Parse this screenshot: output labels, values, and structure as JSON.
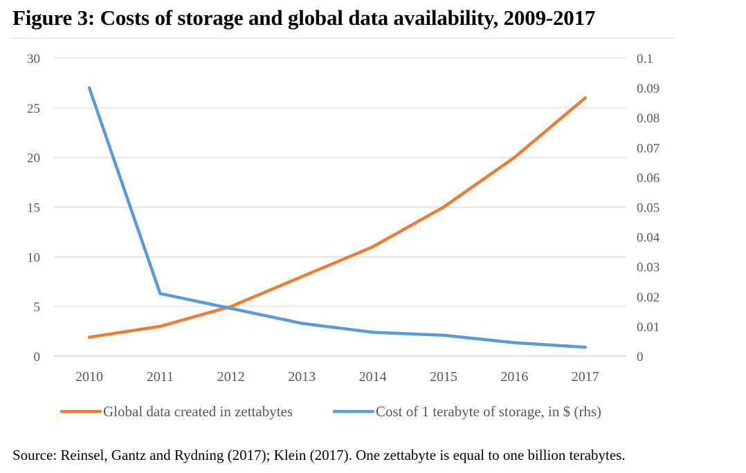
{
  "title": "Figure 3: Costs of storage and global data availability, 2009-2017",
  "source": "Source: Reinsel, Gantz and Rydning (2017); Klein (2017). One zettabyte is equal to one billion terabytes.",
  "chart_data": {
    "type": "line",
    "categories": [
      "2010",
      "2011",
      "2012",
      "2013",
      "2014",
      "2015",
      "2016",
      "2017"
    ],
    "series": [
      {
        "name": "Global data created in zettabytes",
        "axis": "left",
        "color": "#ED7D31",
        "values": [
          1.9,
          3.0,
          5.0,
          8.0,
          11.0,
          15.0,
          20.0,
          26.0
        ]
      },
      {
        "name": "Cost of 1 terabyte of storage, in $ (rhs)",
        "axis": "right",
        "color": "#5B9BD5",
        "values": [
          0.09,
          0.021,
          0.016,
          0.011,
          0.008,
          0.007,
          0.0045,
          0.003
        ]
      }
    ],
    "y_left": {
      "min": 0,
      "max": 30,
      "ticks": [
        "0",
        "5",
        "10",
        "15",
        "20",
        "25",
        "30"
      ]
    },
    "y_right": {
      "min": 0,
      "max": 0.1,
      "ticks": [
        "0",
        "0.01",
        "0.02",
        "0.03",
        "0.04",
        "0.05",
        "0.06",
        "0.07",
        "0.08",
        "0.09",
        "0.1"
      ]
    },
    "grid": true,
    "legend_position": "bottom"
  }
}
